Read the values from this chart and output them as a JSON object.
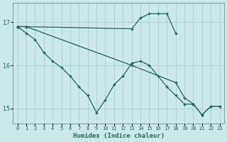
{
  "xlabel": "Humidex (Indice chaleur)",
  "xlim": [
    -0.5,
    23.5
  ],
  "ylim": [
    14.65,
    17.45
  ],
  "yticks": [
    15,
    16,
    17
  ],
  "xticks": [
    0,
    1,
    2,
    3,
    4,
    5,
    6,
    7,
    8,
    9,
    10,
    11,
    12,
    13,
    14,
    15,
    16,
    17,
    18,
    19,
    20,
    21,
    22,
    23
  ],
  "bg_color": "#cce8e8",
  "line_color": "#1a6b5a",
  "grid_color": "#aac8c8",
  "line1": {
    "x": [
      0,
      1,
      13,
      14,
      15,
      16,
      17,
      18
    ],
    "y": [
      16.9,
      16.9,
      16.85,
      17.1,
      17.2,
      17.2,
      17.2,
      16.75
    ]
  },
  "line2": {
    "x": [
      0,
      1,
      2,
      3,
      4,
      5,
      6,
      7,
      8,
      9,
      10,
      11,
      12,
      13,
      14,
      15,
      16,
      17,
      18,
      19,
      20,
      21,
      22,
      23
    ],
    "y": [
      16.9,
      16.75,
      16.6,
      16.3,
      16.1,
      15.95,
      15.75,
      15.5,
      15.3,
      14.9,
      15.2,
      15.55,
      15.75,
      16.05,
      16.1,
      16.0,
      15.75,
      15.5,
      15.3,
      15.1,
      15.1,
      14.85,
      15.05,
      15.05
    ]
  },
  "line3": {
    "x": [
      0,
      1,
      13,
      18,
      19,
      20,
      21,
      22,
      23
    ],
    "y": [
      16.9,
      16.9,
      16.0,
      15.6,
      15.25,
      15.1,
      14.85,
      15.05,
      15.05
    ]
  }
}
